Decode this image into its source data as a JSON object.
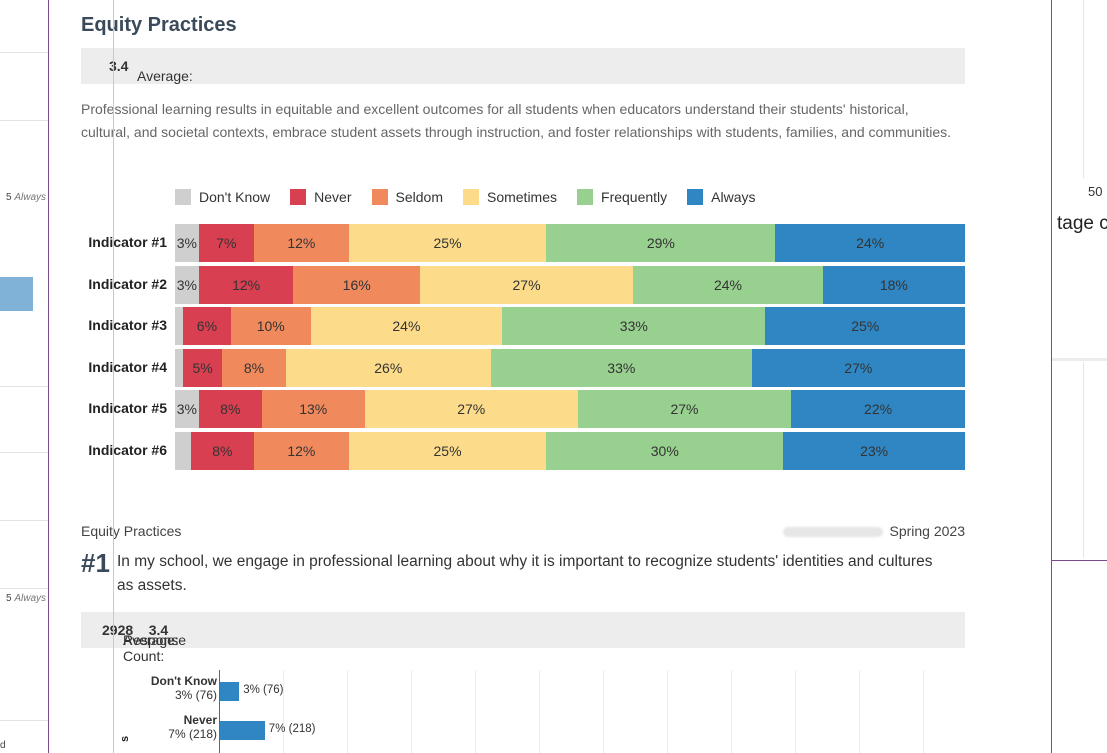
{
  "section_title": "Equity Practices",
  "average_label": "Average:",
  "average_value": "3.4",
  "description": "Professional learning results in equitable and excellent outcomes for all students when educators understand their students' historical, cultural, and societal contexts, embrace student assets through instruction, and foster relationships with students, families, and communities.",
  "left_fragments": {
    "always_top": "5",
    "always_top_word": "Always",
    "always_bottom": "5",
    "always_bottom_word": "Always",
    "bottom_letter": "d"
  },
  "right_fragments": {
    "percent": "50",
    "tage": "tage c"
  },
  "colors": {
    "dont_know": "#cfcfcf",
    "never": "#d83f51",
    "seldom": "#f08a5c",
    "sometimes": "#fcdc8a",
    "frequently": "#98d08f",
    "always": "#2f86c2"
  },
  "chart_data": [
    {
      "type": "bar",
      "orientation": "horizontal",
      "stacked": true,
      "percent": true,
      "categories": [
        "Indicator #1",
        "Indicator #2",
        "Indicator #3",
        "Indicator #4",
        "Indicator #5",
        "Indicator #6"
      ],
      "series": [
        {
          "name": "Don't Know",
          "color": "#cfcfcf",
          "values": [
            3,
            3,
            1,
            1,
            3,
            2
          ]
        },
        {
          "name": "Never",
          "color": "#d83f51",
          "values": [
            7,
            12,
            6,
            5,
            8,
            8
          ]
        },
        {
          "name": "Seldom",
          "color": "#f08a5c",
          "values": [
            12,
            16,
            10,
            8,
            13,
            12
          ]
        },
        {
          "name": "Sometimes",
          "color": "#fcdc8a",
          "values": [
            25,
            27,
            24,
            26,
            27,
            25
          ]
        },
        {
          "name": "Frequently",
          "color": "#98d08f",
          "values": [
            29,
            24,
            33,
            33,
            27,
            30
          ]
        },
        {
          "name": "Always",
          "color": "#2f86c2",
          "values": [
            24,
            18,
            25,
            27,
            22,
            23
          ]
        }
      ],
      "labels": [
        [
          "3%",
          "7%",
          "12%",
          "25%",
          "29%",
          "24%"
        ],
        [
          "3%",
          "12%",
          "16%",
          "27%",
          "24%",
          "18%"
        ],
        [
          "",
          "6%",
          "10%",
          "24%",
          "33%",
          "25%"
        ],
        [
          "",
          "5%",
          "8%",
          "26%",
          "33%",
          "27%"
        ],
        [
          "3%",
          "8%",
          "13%",
          "27%",
          "27%",
          "22%"
        ],
        [
          "",
          "8%",
          "12%",
          "25%",
          "30%",
          "23%"
        ]
      ],
      "legend": "top"
    },
    {
      "type": "bar",
      "orientation": "horizontal",
      "categories": [
        "Don't Know",
        "Never"
      ],
      "category_sublabels": [
        "3% (76)",
        "7% (218)"
      ],
      "values": [
        76,
        218
      ],
      "percentages": [
        3,
        7
      ],
      "data_labels": [
        "3% (76)",
        "7% (218)"
      ],
      "color": "#2f86c2",
      "grid": true
    }
  ],
  "indicator_detail": {
    "section": "Equity Practices",
    "term": "Spring 2023",
    "number": "#1",
    "question": "In my school, we engage in professional learning about why it is important to recognize students' identities and cultures as assets.",
    "response_count_label": "Response Count:",
    "response_count": "2928",
    "average_label": "Average:",
    "average_value": "3.4",
    "axis_stub": "s"
  }
}
